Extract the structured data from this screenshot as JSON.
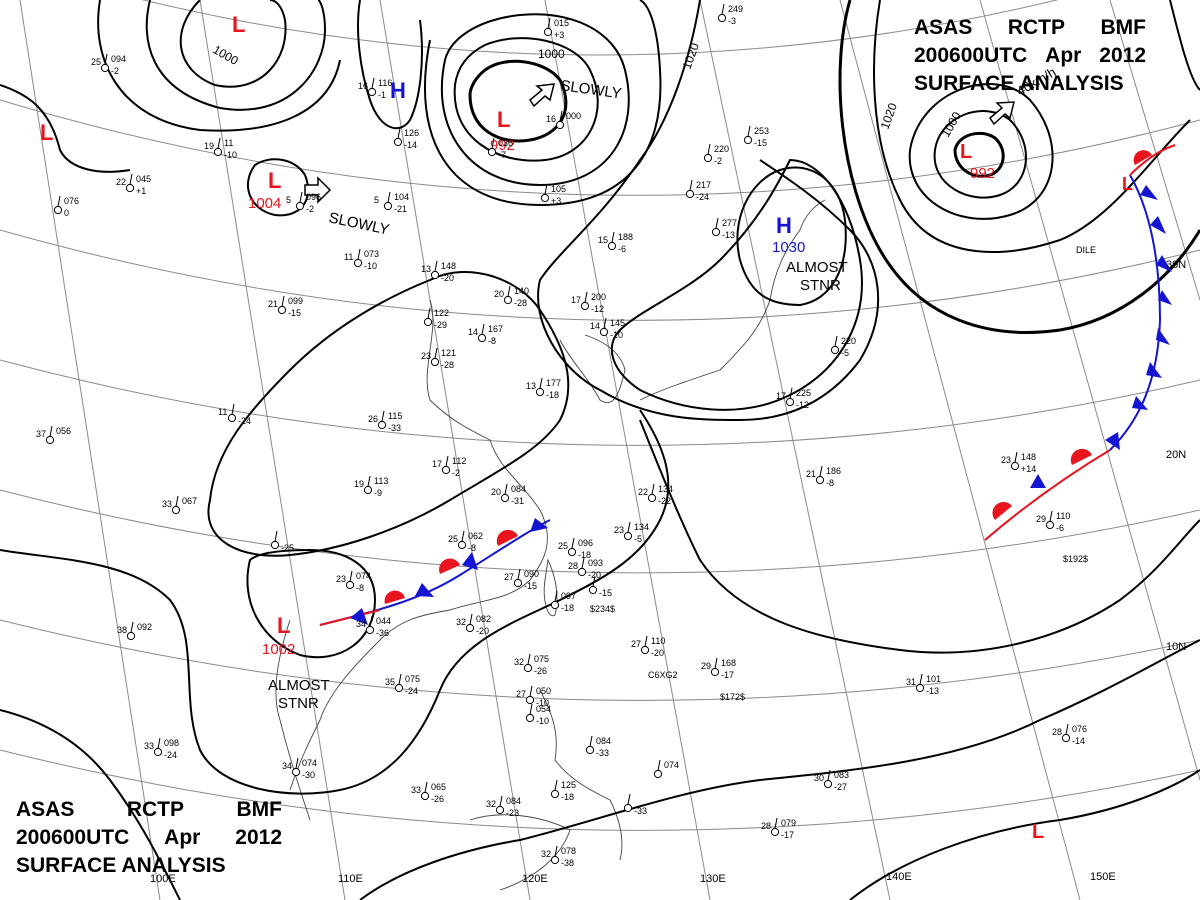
{
  "header": {
    "agency": [
      "ASAS",
      "RCTP",
      "BMF"
    ],
    "valid": [
      "200600UTC",
      "Apr",
      "2012"
    ],
    "product": "SURFACE ANALYSIS"
  },
  "colors": {
    "low": "#e8141e",
    "high": "#1414d2",
    "front_cold": "#1414d2",
    "front_warm": "#e8141e",
    "isobar": "#000000",
    "grid": "#888888"
  },
  "lon_labels": [
    "100E",
    "110E",
    "120E",
    "130E",
    "140E",
    "150E"
  ],
  "lat_labels": [
    "30N",
    "20N",
    "10N"
  ],
  "pressure_systems": [
    {
      "type": "L",
      "value": ""
    },
    {
      "type": "L",
      "value": ""
    },
    {
      "type": "L",
      "value": "1004"
    },
    {
      "type": "H",
      "value": ""
    },
    {
      "type": "L",
      "value": "992"
    },
    {
      "type": "H",
      "value": "1030"
    },
    {
      "type": "L",
      "value": "992"
    },
    {
      "type": "L",
      "value": ""
    },
    {
      "type": "L",
      "value": "1002"
    },
    {
      "type": "L",
      "value": ""
    }
  ],
  "annotations": [
    "SLOWLY",
    "SLOWLY",
    "ALMOST",
    "STNR",
    "ALMOST",
    "STNR",
    "40km/h"
  ],
  "isobar_labels": [
    "1000",
    "1000",
    "1020",
    "1020",
    "1000"
  ],
  "stations": [
    {
      "t": "25",
      "p": "094",
      "v": "-2"
    },
    {
      "t": "22",
      "p": "045",
      "v": "+1"
    },
    {
      "t": "",
      "p": "076",
      "v": "0"
    },
    {
      "t": "19",
      "p": "11",
      "v": "-10"
    },
    {
      "t": "5",
      "p": "096",
      "v": "-2"
    },
    {
      "t": "16",
      "p": "116",
      "v": "-1"
    },
    {
      "t": "",
      "p": "126",
      "v": "-14"
    },
    {
      "t": "5",
      "p": "104",
      "v": "-21"
    },
    {
      "t": "11",
      "p": "073",
      "v": "-10"
    },
    {
      "t": "",
      "p": "036",
      "v": "-7"
    },
    {
      "t": "",
      "p": "015",
      "v": "+3"
    },
    {
      "t": "",
      "p": "105",
      "v": "+3"
    },
    {
      "t": "16",
      "p": "000",
      "v": ""
    },
    {
      "t": "",
      "p": "249",
      "v": "-3"
    },
    {
      "t": "",
      "p": "220",
      "v": "-2"
    },
    {
      "t": "",
      "p": "217",
      "v": "-24"
    },
    {
      "t": "",
      "p": "253",
      "v": "-15"
    },
    {
      "t": "",
      "p": "277",
      "v": "-13"
    },
    {
      "t": "15",
      "p": "188",
      "v": "-6"
    },
    {
      "t": "13",
      "p": "148",
      "v": "-20"
    },
    {
      "t": "20",
      "p": "140",
      "v": "-28"
    },
    {
      "t": "17",
      "p": "200",
      "v": "-12"
    },
    {
      "t": "14",
      "p": "145",
      "v": "-10"
    },
    {
      "t": "",
      "p": "122",
      "v": "-29"
    },
    {
      "t": "14",
      "p": "167",
      "v": "-8"
    },
    {
      "t": "23",
      "p": "121",
      "v": "-28"
    },
    {
      "t": "13",
      "p": "177",
      "v": "-18"
    },
    {
      "t": "21",
      "p": "099",
      "v": "-15"
    },
    {
      "t": "",
      "p": "220",
      "v": "-5"
    },
    {
      "t": "17",
      "p": "225",
      "v": "-12"
    },
    {
      "t": "11",
      "p": "",
      "v": "-24"
    },
    {
      "t": "37",
      "p": "056",
      "v": ""
    },
    {
      "t": "26",
      "p": "115",
      "v": "-33"
    },
    {
      "t": "21",
      "p": "186",
      "v": "-8"
    },
    {
      "t": "17",
      "p": "112",
      "v": "-2"
    },
    {
      "t": "19",
      "p": "113",
      "v": "-9"
    },
    {
      "t": "20",
      "p": "084",
      "v": "-31"
    },
    {
      "t": "22",
      "p": "134",
      "v": "-22"
    },
    {
      "t": "23",
      "p": "134",
      "v": "-5"
    },
    {
      "t": "33",
      "p": "067",
      "v": ""
    },
    {
      "t": "",
      "p": "",
      "v": "-25"
    },
    {
      "t": "25",
      "p": "062",
      "v": "-8"
    },
    {
      "t": "25",
      "p": "096",
      "v": "-18"
    },
    {
      "t": "28",
      "p": "093",
      "v": "-20"
    },
    {
      "t": "23",
      "p": "148",
      "v": "+14"
    },
    {
      "t": "29",
      "p": "110",
      "v": "-6"
    },
    {
      "t": "23",
      "p": "074",
      "v": "-8"
    },
    {
      "t": "27",
      "p": "090",
      "v": "-15"
    },
    {
      "t": "",
      "p": "097",
      "v": "-18"
    },
    {
      "t": "",
      "p": "",
      "v": "-15"
    },
    {
      "t": "34",
      "p": "044",
      "v": "-36"
    },
    {
      "t": "32",
      "p": "082",
      "v": "-20"
    },
    {
      "t": "38",
      "p": "092",
      "v": ""
    },
    {
      "t": "27",
      "p": "110",
      "v": "-20"
    },
    {
      "t": "29",
      "p": "168",
      "v": "-17"
    },
    {
      "t": "31",
      "p": "101",
      "v": "-13"
    },
    {
      "t": "35",
      "p": "075",
      "v": "-24"
    },
    {
      "t": "32",
      "p": "075",
      "v": "-26"
    },
    {
      "t": "27",
      "p": "050",
      "v": "-10"
    },
    {
      "t": "",
      "p": "054",
      "v": "-10"
    },
    {
      "t": "33",
      "p": "098",
      "v": "-24"
    },
    {
      "t": "34",
      "p": "074",
      "v": "-30"
    },
    {
      "t": "",
      "p": "084",
      "v": "-33"
    },
    {
      "t": "",
      "p": "074",
      "v": ""
    },
    {
      "t": "33",
      "p": "065",
      "v": "-26"
    },
    {
      "t": "32",
      "p": "084",
      "v": "-23"
    },
    {
      "t": "",
      "p": "125",
      "v": "-18"
    },
    {
      "t": "30",
      "p": "083",
      "v": "-27"
    },
    {
      "t": "28",
      "p": "076",
      "v": "-14"
    },
    {
      "t": "28",
      "p": "079",
      "v": "-17"
    },
    {
      "t": "32",
      "p": "078",
      "v": "-38"
    },
    {
      "t": "",
      "p": "",
      "v": "-33"
    }
  ],
  "station_codes": [
    "DILE",
    "$192$",
    "$234$",
    "$172$",
    "C6XG2"
  ]
}
